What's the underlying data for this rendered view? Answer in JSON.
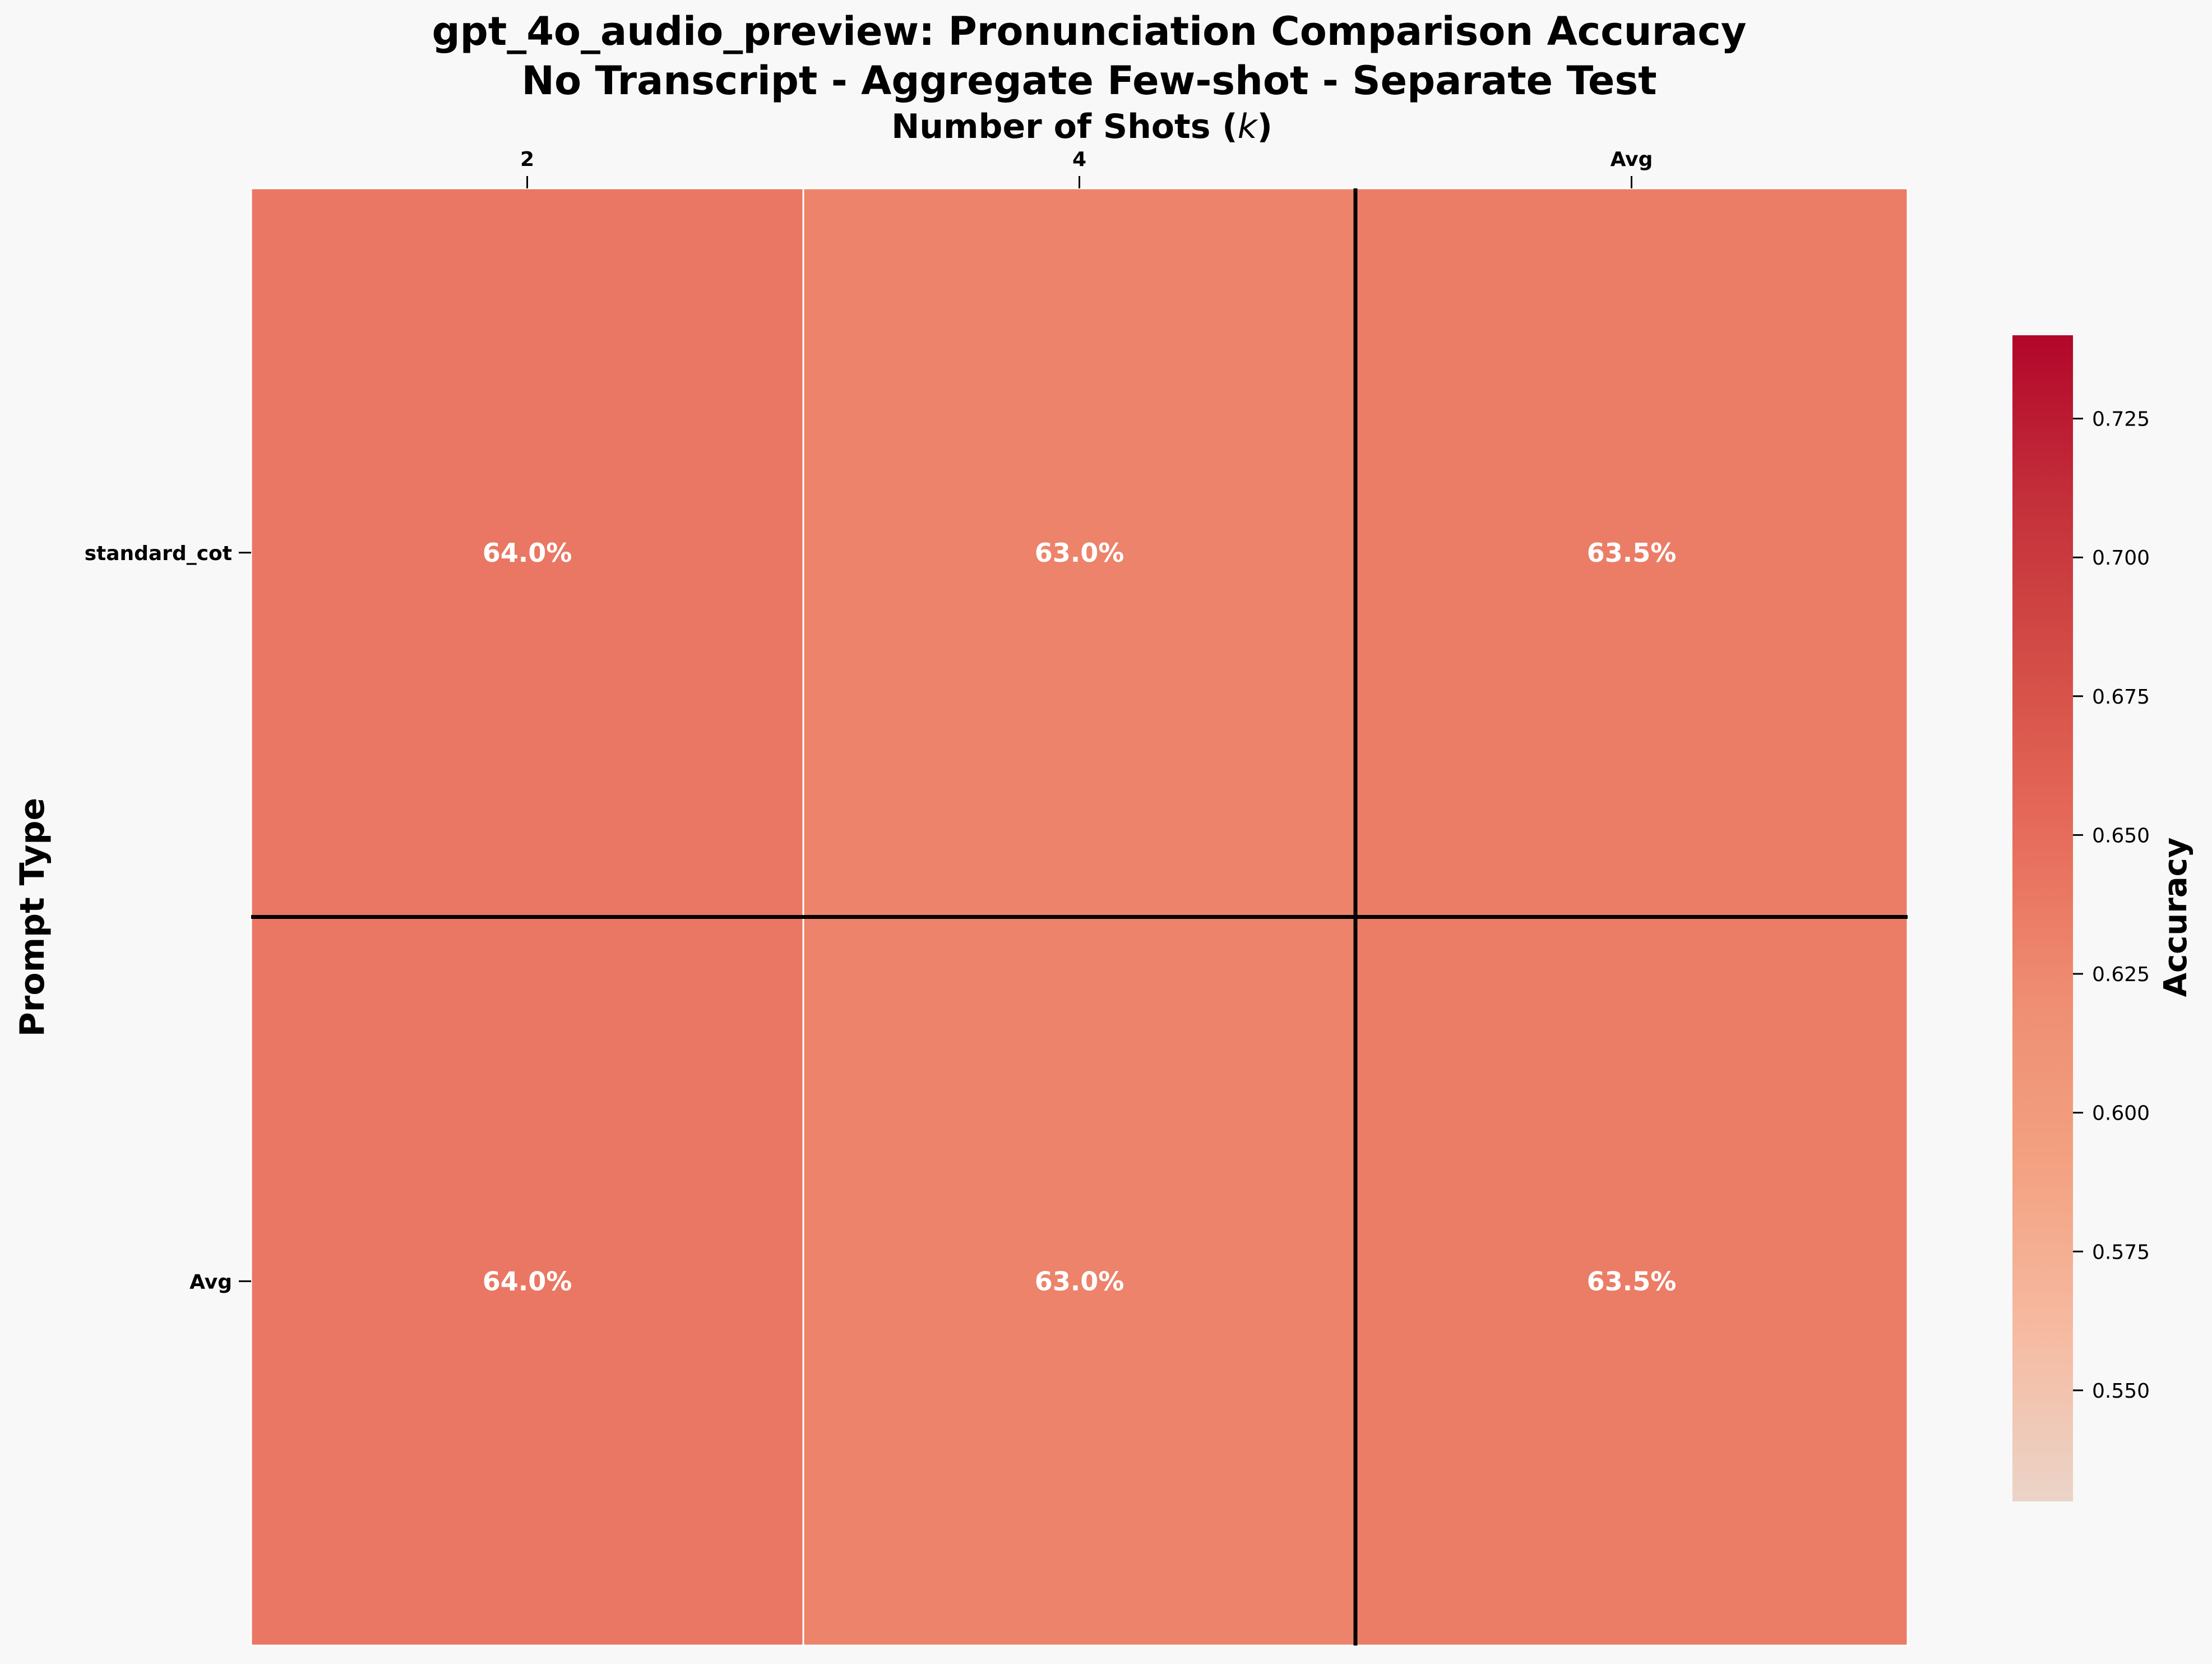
{
  "chart_data": {
    "type": "heatmap",
    "title": "gpt_4o_audio_preview: Pronunciation Comparison Accuracy",
    "subtitle": "No Transcript - Aggregate Few-shot - Separate Test",
    "xlabel": "Number of Shots (k)",
    "ylabel": "Prompt Type",
    "x_categories": [
      "2",
      "4",
      "Avg"
    ],
    "y_categories": [
      "standard_cot",
      "Avg"
    ],
    "values": [
      [
        0.64,
        0.63,
        0.635
      ],
      [
        0.64,
        0.63,
        0.635
      ]
    ],
    "cell_labels": [
      [
        "64.0%",
        "63.0%",
        "63.5%"
      ],
      [
        "64.0%",
        "63.0%",
        "63.5%"
      ]
    ],
    "colorbar": {
      "label": "Accuracy",
      "vmin": 0.53,
      "vmax": 0.74,
      "ticks": [
        0.55,
        0.575,
        0.6,
        0.625,
        0.65,
        0.675,
        0.7,
        0.725
      ],
      "tick_labels": [
        "0.550",
        "0.575",
        "0.600",
        "0.625",
        "0.650",
        "0.675",
        "0.700",
        "0.725"
      ],
      "colormap": "Reds-diverging",
      "colors": [
        "#ebd4c8",
        "#f6bba2",
        "#f3a282",
        "#ef8e72",
        "#e76c5b",
        "#d44e47",
        "#c4303a",
        "#b2062a"
      ]
    },
    "separators": "Avg row and Avg column separated by black lines",
    "grid": false
  }
}
